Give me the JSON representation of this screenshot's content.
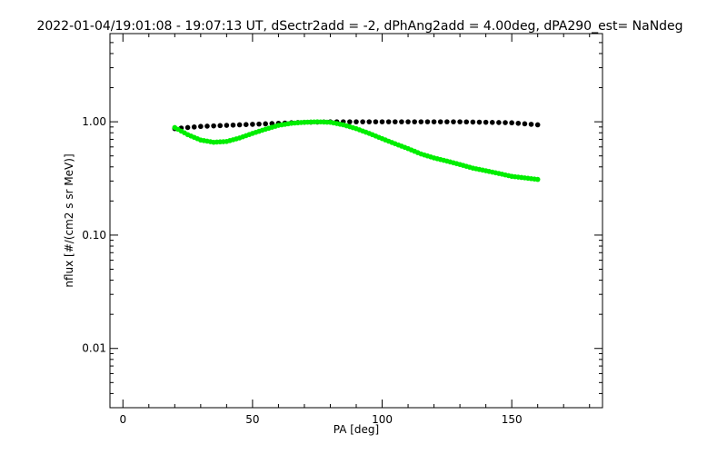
{
  "chart_data": {
    "type": "scatter",
    "title": "2022-01-04/19:01:08 - 19:07:13 UT, dSectr2add = -2, dPhAng2add = 4.00deg, dPA290_est=   NaNdeg",
    "xlabel": "PA [deg]",
    "ylabel": "nflux [#/(cm2 s sr MeV)]",
    "xlim": [
      -5,
      185
    ],
    "ylim": [
      0.003,
      6
    ],
    "yscale": "log",
    "x_ticks": [
      {
        "value": 0,
        "label": "0"
      },
      {
        "value": 50,
        "label": "50"
      },
      {
        "value": 100,
        "label": "100"
      },
      {
        "value": 150,
        "label": "150"
      }
    ],
    "y_ticks": [
      {
        "value": 0.01,
        "label": "0.01"
      },
      {
        "value": 0.1,
        "label": "0.10"
      },
      {
        "value": 1,
        "label": "1.00"
      }
    ],
    "grid": false,
    "legend": "none",
    "series": [
      {
        "color": "#000000",
        "x": [
          20,
          30,
          40,
          50,
          60,
          70,
          80,
          90,
          100,
          110,
          120,
          130,
          140,
          150,
          160
        ],
        "y": [
          0.87,
          0.91,
          0.93,
          0.95,
          0.97,
          0.99,
          1.0,
          1.0,
          1.0,
          1.0,
          1.0,
          1.0,
          0.99,
          0.98,
          0.94
        ]
      },
      {
        "color": "#00ee00",
        "x": [
          20,
          25,
          30,
          35,
          40,
          45,
          50,
          55,
          60,
          65,
          70,
          75,
          80,
          85,
          90,
          95,
          100,
          105,
          110,
          115,
          120,
          125,
          130,
          135,
          140,
          145,
          150,
          155,
          160
        ],
        "y": [
          0.89,
          0.77,
          0.69,
          0.66,
          0.67,
          0.72,
          0.79,
          0.86,
          0.93,
          0.97,
          0.99,
          1.0,
          0.99,
          0.94,
          0.87,
          0.79,
          0.71,
          0.64,
          0.58,
          0.52,
          0.48,
          0.45,
          0.42,
          0.39,
          0.37,
          0.35,
          0.33,
          0.32,
          0.31
        ]
      }
    ]
  }
}
